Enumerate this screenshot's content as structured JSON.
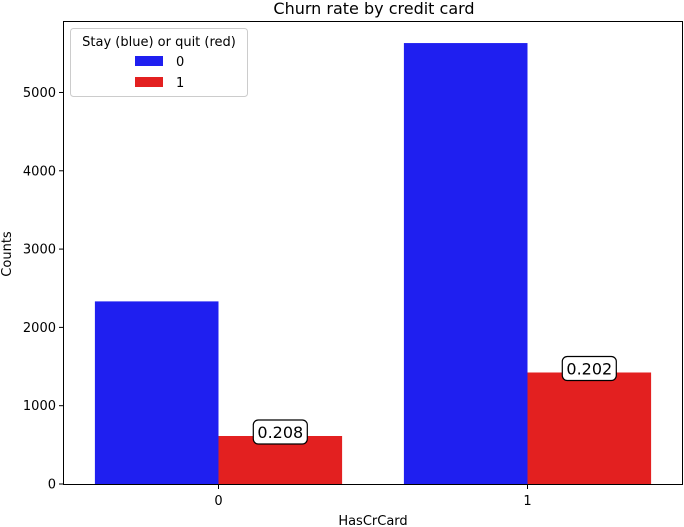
{
  "chart_data": {
    "type": "bar",
    "title": "Churn rate by credit card",
    "xlabel": "HasCrCard",
    "ylabel": "Counts",
    "categories": [
      "0",
      "1"
    ],
    "ylim": [
      0,
      5900
    ],
    "yticks": [
      0,
      1000,
      2000,
      3000,
      4000,
      5000
    ],
    "series": [
      {
        "name": "0",
        "color": "#1f1ff0",
        "values": [
          2332,
          5631
        ]
      },
      {
        "name": "1",
        "color": "#e32020",
        "values": [
          613,
          1424
        ]
      }
    ],
    "annotations": [
      {
        "category": "0",
        "series": "1",
        "text": "0.208"
      },
      {
        "category": "1",
        "series": "1",
        "text": "0.202"
      }
    ],
    "legend": {
      "title": "Stay (blue) or quit (red)",
      "placement": "top-left"
    },
    "grid": false
  }
}
